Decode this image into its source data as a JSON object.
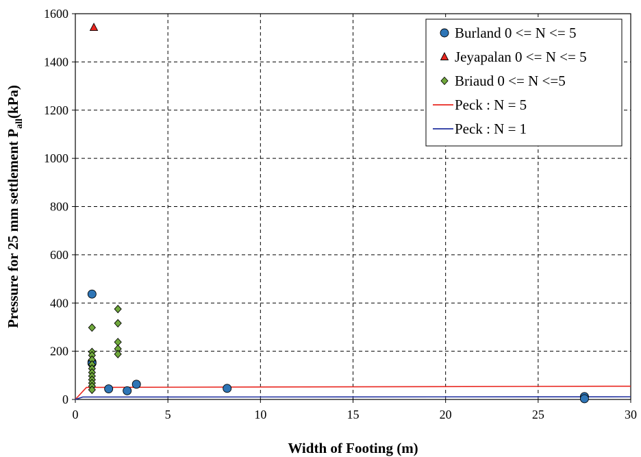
{
  "chart_data": {
    "type": "scatter",
    "xlabel": "Width of Footing (m)",
    "ylabel_main": "Pressure for 25 mm settlement P",
    "ylabel_sub": "all",
    "ylabel_unit": "(kPa)",
    "xlim": [
      0,
      30
    ],
    "ylim": [
      0,
      1600
    ],
    "x_ticks": [
      "0",
      "5",
      "10",
      "15",
      "20",
      "25",
      "30"
    ],
    "y_ticks": [
      "0",
      "200",
      "400",
      "600",
      "800",
      "1000",
      "1200",
      "1400",
      "1600"
    ],
    "grid": true,
    "legend_position": "top-right",
    "series": [
      {
        "name": "Burland 0 <= N <= 5",
        "marker": "circle",
        "color": "#2e75b6",
        "points": [
          [
            0.9,
            437
          ],
          [
            0.9,
            155
          ],
          [
            0.9,
            150
          ],
          [
            1.8,
            44
          ],
          [
            2.8,
            36
          ],
          [
            3.3,
            63
          ],
          [
            8.2,
            46
          ],
          [
            27.5,
            12
          ],
          [
            27.5,
            3
          ]
        ]
      },
      {
        "name": "Jeyapalan 0 <= N <= 5",
        "marker": "triangle",
        "color": "#e8261f",
        "points": [
          [
            1.0,
            1543
          ]
        ]
      },
      {
        "name": "Briaud 0 <= N <=5",
        "marker": "diamond",
        "color": "#70a83c",
        "points": [
          [
            0.9,
            298
          ],
          [
            0.9,
            197
          ],
          [
            0.9,
            183
          ],
          [
            0.9,
            165
          ],
          [
            0.9,
            145
          ],
          [
            0.9,
            128
          ],
          [
            0.9,
            112
          ],
          [
            0.9,
            97
          ],
          [
            0.9,
            82
          ],
          [
            0.9,
            68
          ],
          [
            0.9,
            55
          ],
          [
            0.9,
            40
          ],
          [
            2.3,
            375
          ],
          [
            2.3,
            316
          ],
          [
            2.3,
            238
          ],
          [
            2.3,
            210
          ],
          [
            2.3,
            188
          ]
        ]
      },
      {
        "name": "Peck : N = 5",
        "marker": "line",
        "color": "#e8261f",
        "points": [
          [
            0,
            0
          ],
          [
            0.6,
            50
          ],
          [
            30,
            55
          ]
        ]
      },
      {
        "name": "Peck : N = 1",
        "marker": "line",
        "color": "#1f2f9e",
        "points": [
          [
            0,
            0
          ],
          [
            0.4,
            10
          ],
          [
            30,
            11
          ]
        ]
      }
    ]
  }
}
